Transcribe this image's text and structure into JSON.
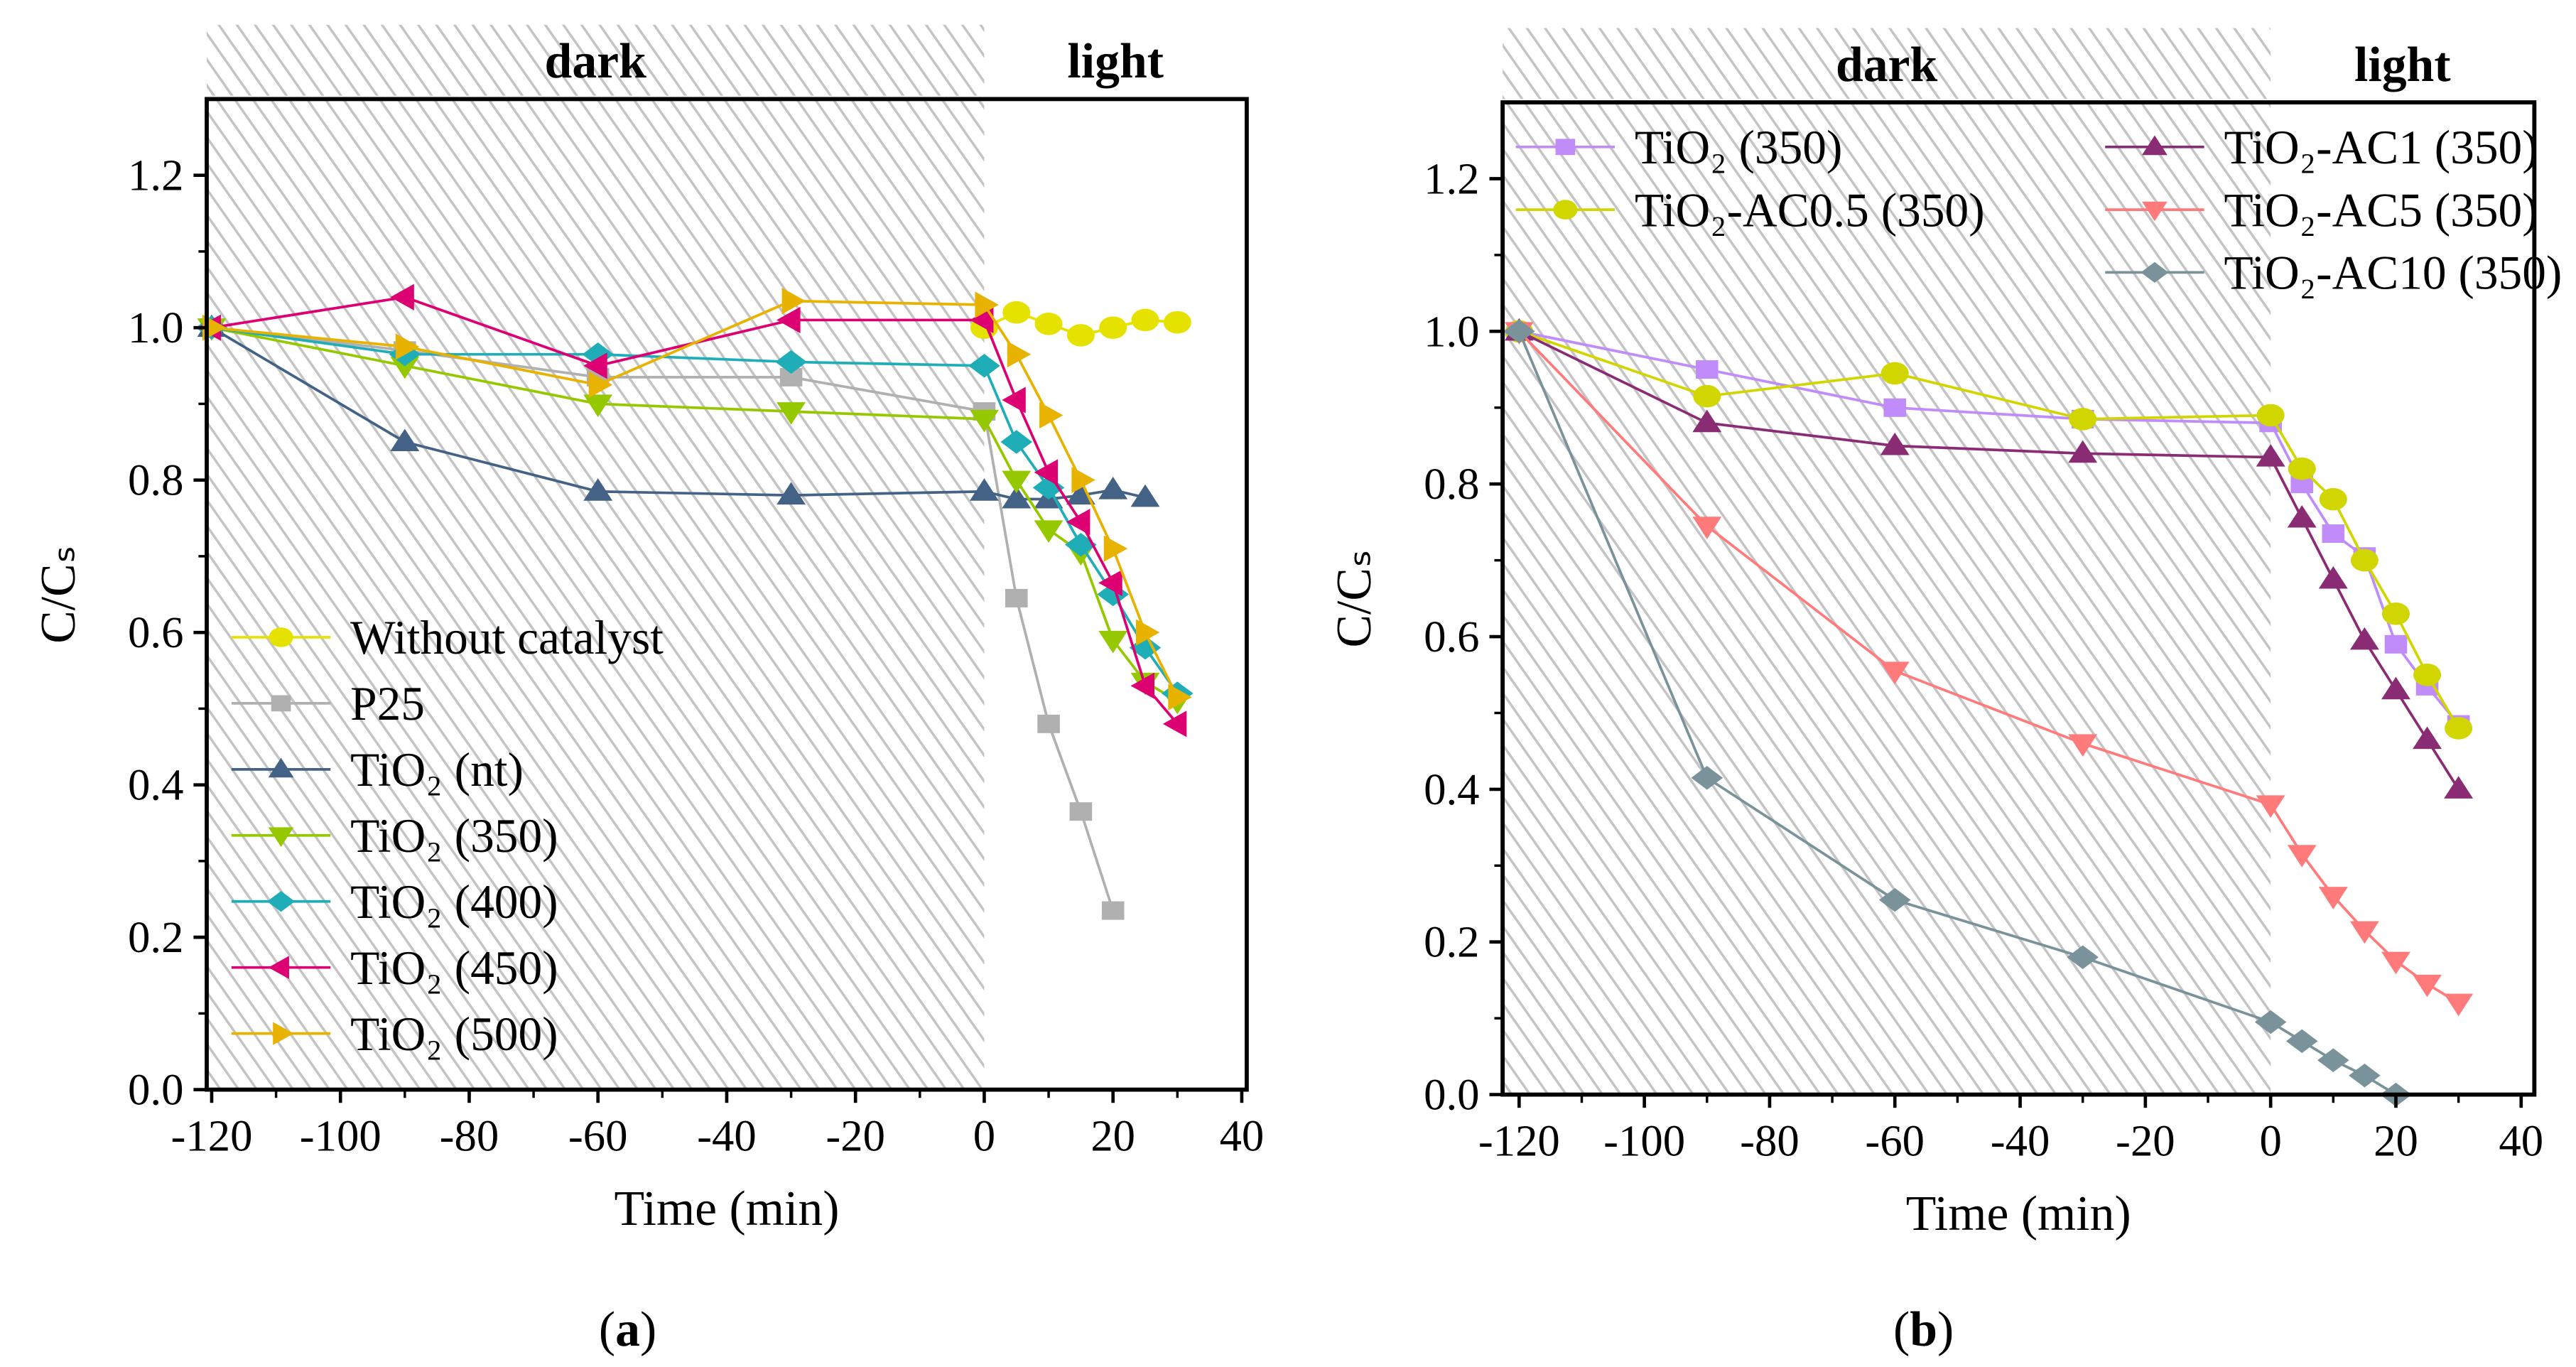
{
  "chart_data": [
    {
      "type": "line",
      "panel_label": "a",
      "title": "",
      "xlabel": "Time (min)",
      "ylabel": "C/Cₛ",
      "xlim": [
        -122,
        40
      ],
      "ylim": [
        0,
        1.3
      ],
      "xticks": [
        -120,
        -100,
        -80,
        -60,
        -40,
        -20,
        0,
        20,
        40
      ],
      "yticks": [
        0.0,
        0.2,
        0.4,
        0.6,
        0.8,
        1.0,
        1.2
      ],
      "regions": [
        {
          "label": "dark",
          "from": -122,
          "to": 0
        },
        {
          "label": "light",
          "from": 0,
          "to": 40
        }
      ],
      "legend_position": "bottom-left",
      "series": [
        {
          "name": "Without catalyst",
          "color": "#e6e200",
          "marker": "circle",
          "x": [
            0,
            5,
            10,
            15,
            20,
            25,
            30
          ],
          "y": [
            1.0,
            1.02,
            1.005,
            0.99,
            1.0,
            1.01,
            1.007
          ]
        },
        {
          "name": "P25",
          "color": "#b0b0b0",
          "marker": "square",
          "x": [
            -120,
            -90,
            -60,
            -30,
            0,
            5,
            10,
            15,
            20
          ],
          "y": [
            1.0,
            0.97,
            0.935,
            0.935,
            0.89,
            0.645,
            0.48,
            0.365,
            0.235
          ]
        },
        {
          "name": "TiO₂ (nt)",
          "color": "#436285",
          "marker": "triangle-up",
          "x": [
            -120,
            -90,
            -60,
            -30,
            0,
            5,
            10,
            15,
            20,
            25
          ],
          "y": [
            1.0,
            0.85,
            0.785,
            0.78,
            0.785,
            0.775,
            0.775,
            0.78,
            0.787,
            0.777
          ]
        },
        {
          "name": "TiO₂ (350)",
          "color": "#96c800",
          "marker": "triangle-down",
          "x": [
            -120,
            -90,
            -60,
            -30,
            0,
            5,
            10,
            15,
            20,
            25,
            30
          ],
          "y": [
            1.0,
            0.95,
            0.9,
            0.89,
            0.88,
            0.8,
            0.735,
            0.705,
            0.59,
            0.535,
            0.51
          ]
        },
        {
          "name": "TiO₂ (400)",
          "color": "#1fadb8",
          "marker": "diamond",
          "x": [
            -120,
            -90,
            -60,
            -30,
            0,
            5,
            10,
            15,
            20,
            25,
            30
          ],
          "y": [
            1.0,
            0.965,
            0.965,
            0.955,
            0.95,
            0.85,
            0.79,
            0.715,
            0.65,
            0.58,
            0.52
          ]
        },
        {
          "name": "TiO₂ (450)",
          "color": "#dc0073",
          "marker": "triangle-left",
          "x": [
            -120,
            -90,
            -60,
            -30,
            0,
            5,
            10,
            15,
            20,
            25,
            30
          ],
          "y": [
            1.0,
            1.04,
            0.95,
            1.01,
            1.01,
            0.905,
            0.81,
            0.745,
            0.665,
            0.53,
            0.48
          ]
        },
        {
          "name": "TiO₂ (500)",
          "color": "#e8b200",
          "marker": "triangle-right",
          "x": [
            -120,
            -90,
            -60,
            -30,
            0,
            5,
            10,
            15,
            20,
            25,
            30
          ],
          "y": [
            1.0,
            0.975,
            0.925,
            1.035,
            1.03,
            0.965,
            0.885,
            0.8,
            0.71,
            0.6,
            0.515
          ]
        }
      ]
    },
    {
      "type": "line",
      "panel_label": "b",
      "title": "",
      "xlabel": "Time (min)",
      "ylabel": "C/Cₛ",
      "xlim": [
        -122,
        40
      ],
      "ylim": [
        0,
        1.3
      ],
      "xticks": [
        -120,
        -100,
        -80,
        -60,
        -40,
        -20,
        0,
        20,
        40
      ],
      "yticks": [
        0.0,
        0.2,
        0.4,
        0.6,
        0.8,
        1.0,
        1.2
      ],
      "regions": [
        {
          "label": "dark",
          "from": -122,
          "to": 0
        },
        {
          "label": "light",
          "from": 0,
          "to": 40
        }
      ],
      "legend_position": "top",
      "series": [
        {
          "name": "TiO₂ (350)",
          "color": "#c08cfa",
          "marker": "square",
          "x": [
            -120,
            -90,
            -60,
            -30,
            0,
            5,
            10,
            15,
            20,
            25,
            30
          ],
          "y": [
            1.0,
            0.95,
            0.9,
            0.885,
            0.88,
            0.8,
            0.735,
            0.705,
            0.59,
            0.535,
            0.485
          ]
        },
        {
          "name": "TiO₂-AC0.5 (350)",
          "color": "#d2d600",
          "marker": "circle",
          "x": [
            -120,
            -90,
            -60,
            -30,
            0,
            5,
            10,
            15,
            20,
            25,
            30
          ],
          "y": [
            1.0,
            0.915,
            0.945,
            0.885,
            0.89,
            0.82,
            0.78,
            0.7,
            0.63,
            0.55,
            0.48
          ]
        },
        {
          "name": "TiO₂-AC1 (350)",
          "color": "#8a2c73",
          "marker": "triangle-up",
          "x": [
            -120,
            -90,
            -60,
            -30,
            0,
            5,
            10,
            15,
            20,
            25,
            30
          ],
          "y": [
            1.0,
            0.88,
            0.85,
            0.84,
            0.835,
            0.755,
            0.675,
            0.595,
            0.53,
            0.465,
            0.4
          ]
        },
        {
          "name": "TiO₂-AC5 (350)",
          "color": "#ff7a7a",
          "marker": "triangle-down",
          "x": [
            -120,
            -90,
            -60,
            -30,
            0,
            5,
            10,
            15,
            20,
            25,
            30
          ],
          "y": [
            1.0,
            0.745,
            0.555,
            0.46,
            0.38,
            0.315,
            0.26,
            0.215,
            0.175,
            0.145,
            0.12
          ]
        },
        {
          "name": "TiO₂-AC10 (350)",
          "color": "#7a9299",
          "marker": "diamond",
          "x": [
            -120,
            -90,
            -60,
            -30,
            0,
            5,
            10,
            15,
            20
          ],
          "y": [
            1.0,
            0.415,
            0.255,
            0.18,
            0.095,
            0.07,
            0.045,
            0.025,
            0.0
          ]
        }
      ]
    }
  ]
}
